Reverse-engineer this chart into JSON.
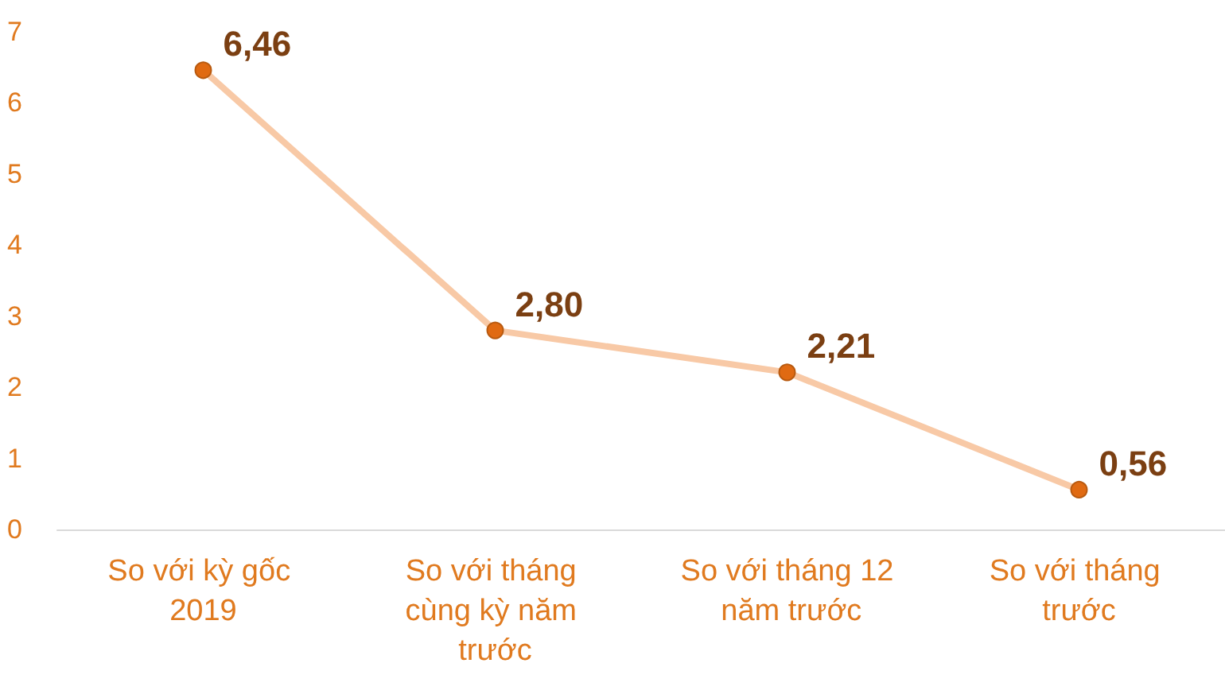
{
  "chart_data": {
    "type": "line",
    "categories": [
      "So với kỳ gốc 2019",
      "So với tháng cùng kỳ năm trước",
      "So với tháng 12 năm trước",
      "So với tháng trước"
    ],
    "series": [
      {
        "color": "#f8c9a6",
        "values": [
          6.46,
          2.8,
          2.21,
          0.56
        ],
        "value_labels": [
          "6,46",
          "2,80",
          "2,21",
          "0,56"
        ]
      }
    ],
    "ylim": [
      0,
      7
    ],
    "yticks": [
      0,
      1,
      2,
      3,
      4,
      5,
      6,
      7
    ],
    "grid": false,
    "marker": "circle",
    "line_style": "solid"
  }
}
